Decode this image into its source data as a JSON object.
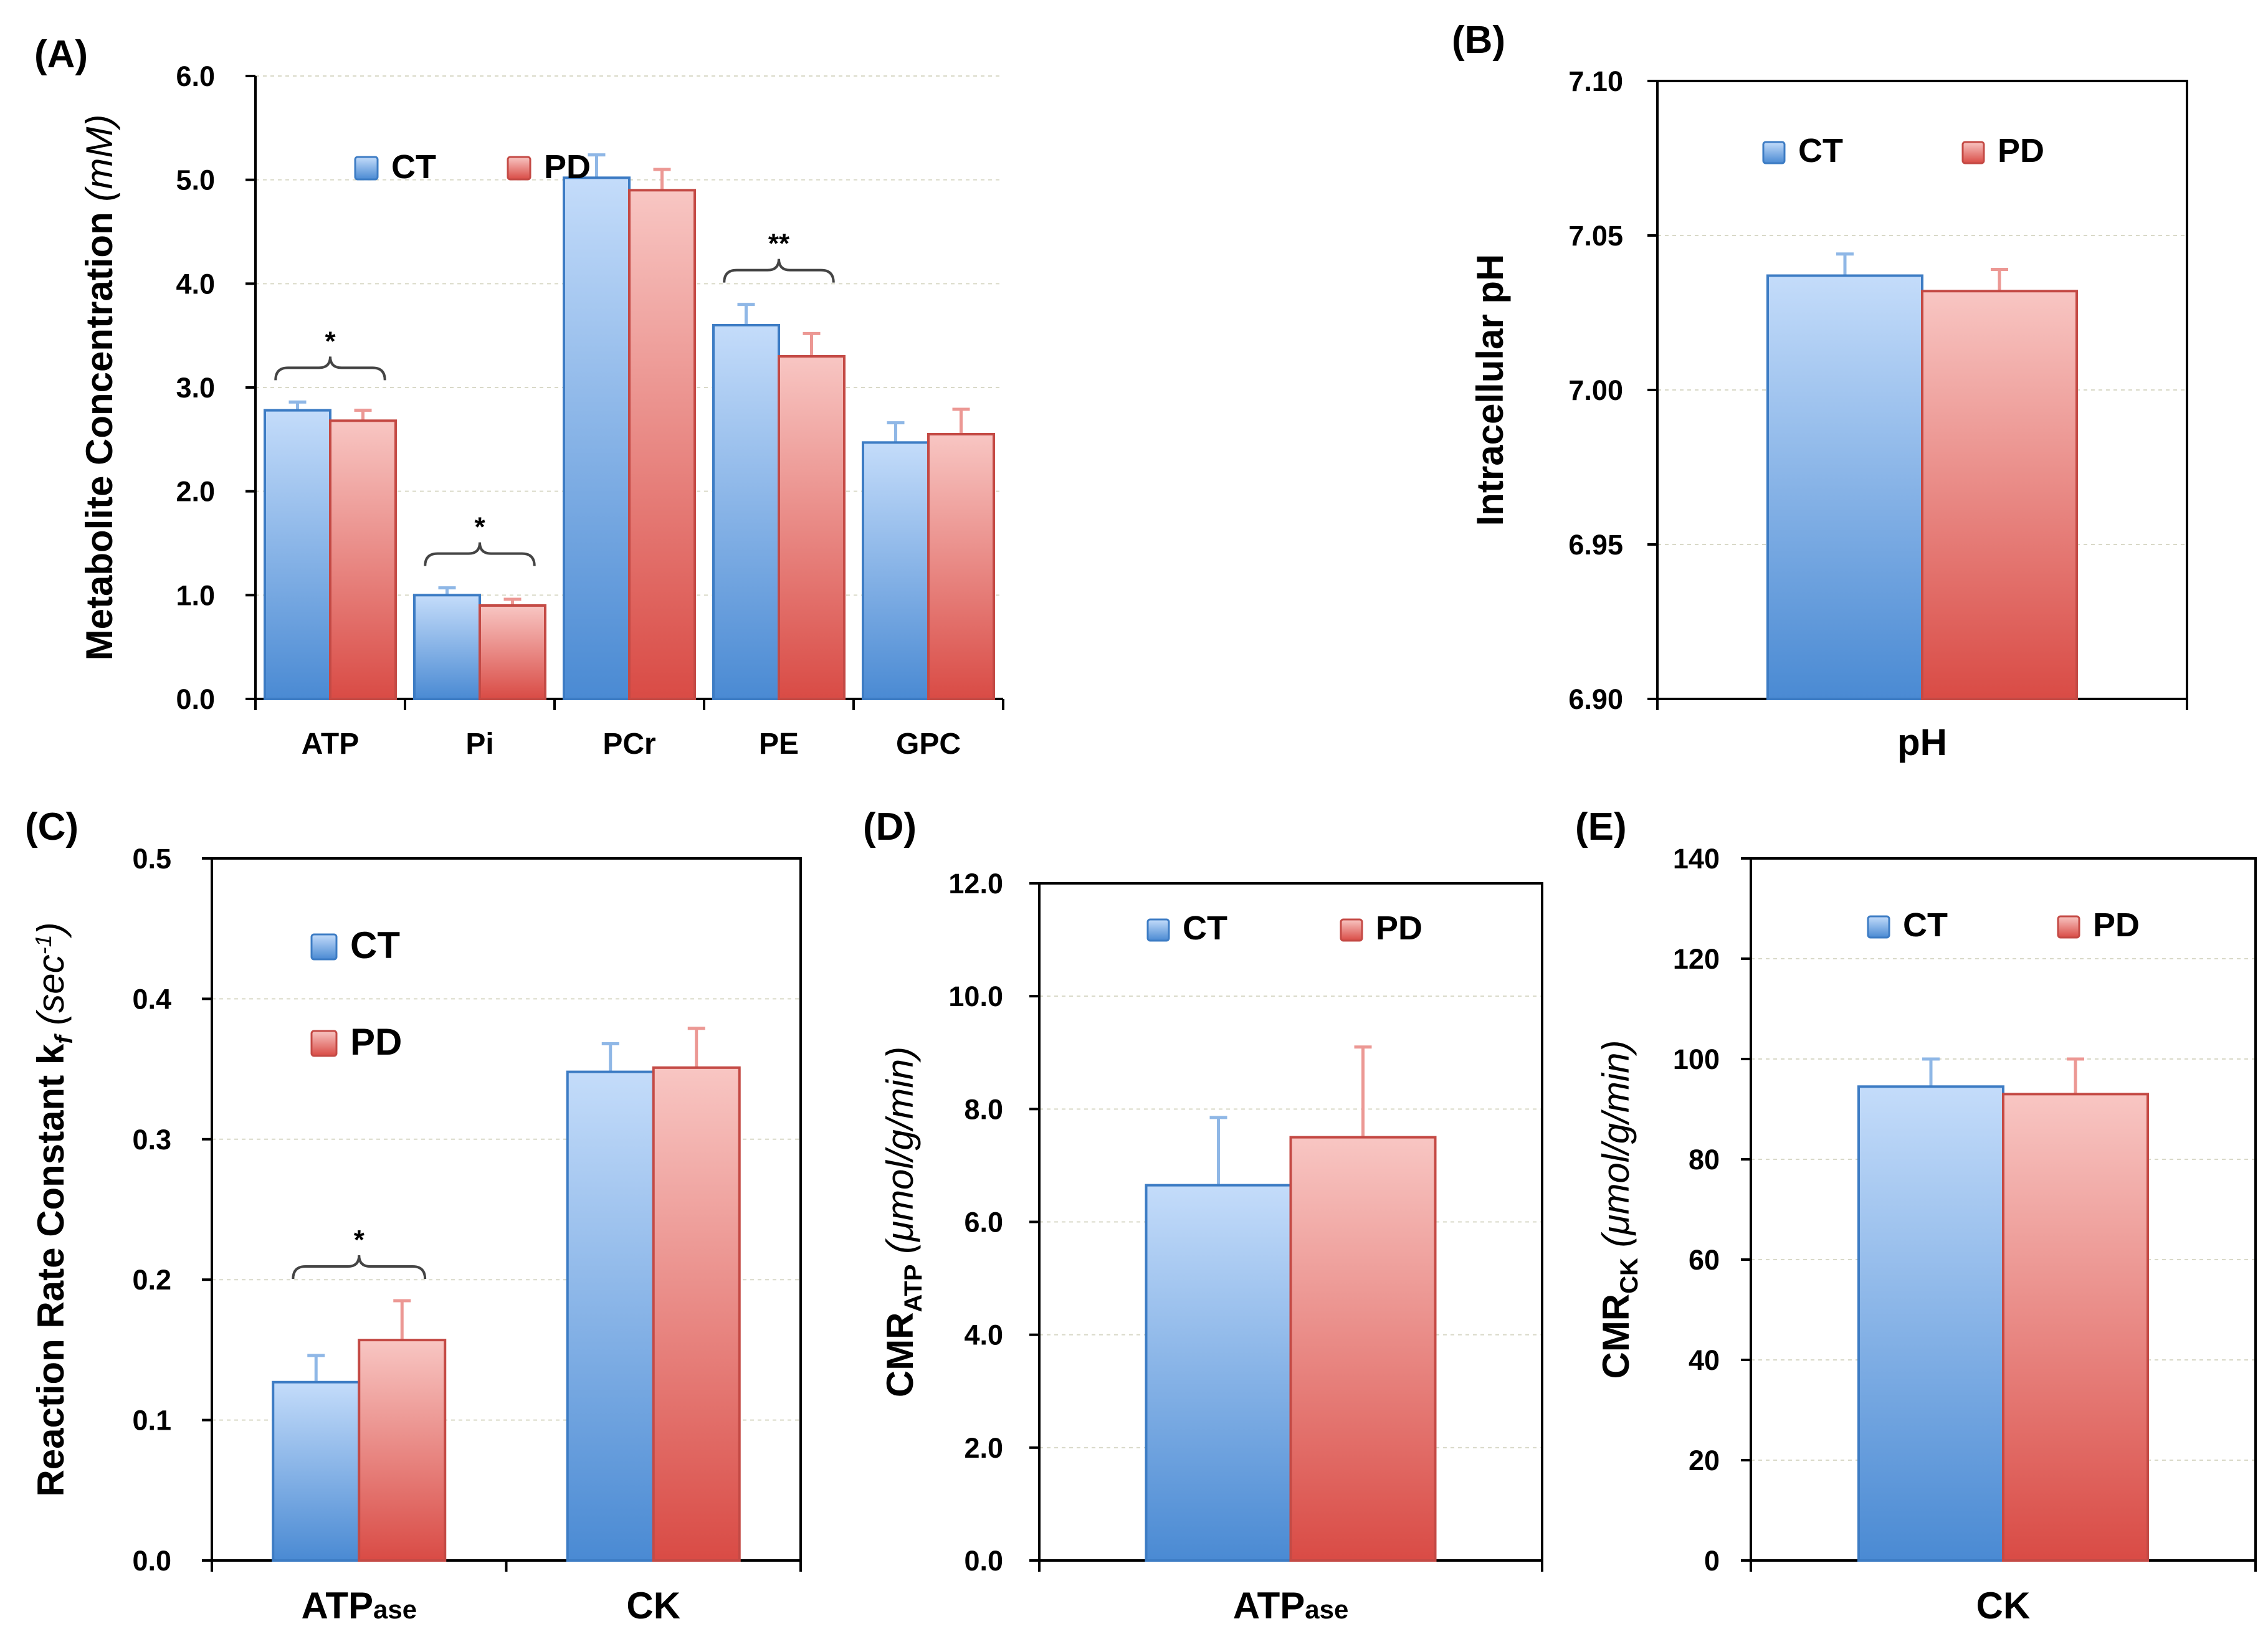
{
  "colors": {
    "ct": "#4f8fd6",
    "pd": "#dd5550",
    "ct_border": "#3d7cc4",
    "pd_border": "#c44a45"
  },
  "chart_data": [
    {
      "type": "bar",
      "panel_label": "(A)",
      "categories": [
        "ATP",
        "Pi",
        "PCr",
        "PE",
        "GPC"
      ],
      "series": [
        {
          "name": "CT",
          "values": [
            2.78,
            1.0,
            5.02,
            3.6,
            2.47
          ],
          "errors": [
            0.08,
            0.07,
            0.22,
            0.2,
            0.19
          ]
        },
        {
          "name": "PD",
          "values": [
            2.68,
            0.9,
            4.9,
            3.3,
            2.55
          ],
          "errors": [
            0.1,
            0.06,
            0.2,
            0.22,
            0.24
          ]
        }
      ],
      "ylabel_main": "Metabolite Concentration ",
      "ylabel_unit": "(mM)",
      "ylim": [
        0,
        6
      ],
      "yticks": [
        "0.0",
        "1.0",
        "2.0",
        "3.0",
        "4.0",
        "5.0",
        "6.0"
      ],
      "significance": [
        {
          "category": "ATP",
          "mark": "*"
        },
        {
          "category": "Pi",
          "mark": "*"
        },
        {
          "category": "PE",
          "mark": "**"
        }
      ],
      "legend": "top-left"
    },
    {
      "type": "bar",
      "panel_label": "(B)",
      "categories": [
        "pH"
      ],
      "series": [
        {
          "name": "CT",
          "values": [
            7.037
          ],
          "errors": [
            0.007
          ]
        },
        {
          "name": "PD",
          "values": [
            7.032
          ],
          "errors": [
            0.007
          ]
        }
      ],
      "ylabel_main": "Intracellular pH",
      "ylim": [
        6.9,
        7.1
      ],
      "yticks": [
        "6.90",
        "6.95",
        "7.00",
        "7.05",
        "7.10"
      ],
      "legend": "top-center"
    },
    {
      "type": "bar",
      "panel_label": "(C)",
      "categories": [
        {
          "main": "ATP",
          "sub": "ase"
        },
        {
          "main": "CK",
          "sub": ""
        }
      ],
      "series": [
        {
          "name": "CT",
          "values": [
            0.127,
            0.348
          ],
          "errors": [
            0.019,
            0.02
          ]
        },
        {
          "name": "PD",
          "values": [
            0.157,
            0.351
          ],
          "errors": [
            0.028,
            0.028
          ]
        }
      ],
      "ylabel_main": "Reaction Rate Constant k",
      "ylabel_sub": "f",
      "ylabel_unit": "(sec",
      "ylabel_sup": "-1",
      "ylabel_close": ")",
      "ylim": [
        0,
        0.5
      ],
      "yticks": [
        "0.0",
        "0.1",
        "0.2",
        "0.3",
        "0.4",
        "0.5"
      ],
      "significance": [
        {
          "category": "ATPase",
          "mark": "*"
        }
      ],
      "legend": "top-left"
    },
    {
      "type": "bar",
      "panel_label": "(D)",
      "categories": [
        {
          "main": "ATP",
          "sub": "ase"
        }
      ],
      "series": [
        {
          "name": "CT",
          "values": [
            6.65
          ],
          "errors": [
            1.2
          ]
        },
        {
          "name": "PD",
          "values": [
            7.5
          ],
          "errors": [
            1.6
          ]
        }
      ],
      "ylabel_main": "CMR",
      "ylabel_sub": "ATP",
      "ylabel_unit": "(μmol/g/min)",
      "ylim": [
        0,
        12
      ],
      "yticks": [
        "0.0",
        "2.0",
        "4.0",
        "6.0",
        "8.0",
        "10.0",
        "12.0"
      ],
      "legend": "top-center"
    },
    {
      "type": "bar",
      "panel_label": "(E)",
      "categories": [
        {
          "main": "CK",
          "sub": ""
        }
      ],
      "series": [
        {
          "name": "CT",
          "values": [
            94.5
          ],
          "errors": [
            5.5
          ]
        },
        {
          "name": "PD",
          "values": [
            93
          ],
          "errors": [
            7
          ]
        }
      ],
      "ylabel_main": "CMR",
      "ylabel_sub": "CK",
      "ylabel_unit": "(μmol/g/min)",
      "ylim": [
        0,
        140
      ],
      "yticks": [
        "0",
        "20",
        "40",
        "60",
        "80",
        "100",
        "120",
        "140"
      ],
      "legend": "top-center"
    }
  ]
}
